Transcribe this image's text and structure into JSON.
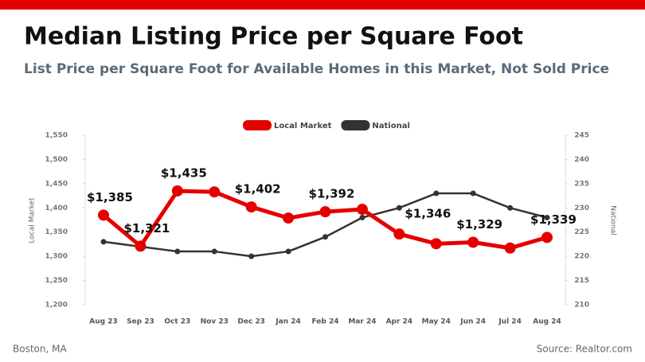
{
  "chart_data": {
    "type": "line",
    "title": "Median Listing Price per Square Foot",
    "subtitle": "List Price per Square Foot for Available Homes in this Market, Not Sold Price",
    "categories": [
      "Aug 23",
      "Sep 23",
      "Oct 23",
      "Nov 23",
      "Dec 23",
      "Jan 24",
      "Feb 24",
      "Mar 24",
      "Apr 24",
      "May 24",
      "Jun 24",
      "Jul 24",
      "Aug 24"
    ],
    "series": [
      {
        "name": "Local Market",
        "color": "#e50000",
        "values": [
          1385,
          1321,
          1435,
          1433,
          1402,
          1379,
          1392,
          1397,
          1346,
          1326,
          1329,
          1317,
          1339
        ],
        "value_labels": [
          "$1,385",
          "$1,321",
          "$1,435",
          null,
          "$1,402",
          null,
          "$1,392",
          null,
          "$1,346",
          null,
          "$1,329",
          null,
          "$1,339"
        ]
      },
      {
        "name": "National",
        "color": "#333333",
        "axis": "y2",
        "values": [
          223,
          222,
          221,
          221,
          220,
          221,
          224,
          228,
          230,
          233,
          233,
          230,
          228
        ]
      }
    ],
    "ylabel": "Local Market",
    "y2label": "National",
    "ylim": [
      1200,
      1550
    ],
    "yticks": [
      {
        "value": 1200,
        "label": "1,200"
      },
      {
        "value": 1250,
        "label": "1,250"
      },
      {
        "value": 1300,
        "label": "1,300"
      },
      {
        "value": 1350,
        "label": "1,350"
      },
      {
        "value": 1400,
        "label": "1,400"
      },
      {
        "value": 1450,
        "label": "1,450"
      },
      {
        "value": 1500,
        "label": "1,500"
      },
      {
        "value": 1550,
        "label": "1,550"
      }
    ],
    "y2lim": [
      210,
      245
    ],
    "y2ticks": [
      210,
      215,
      220,
      225,
      230,
      235,
      240,
      245
    ],
    "legend": "top",
    "footer_left": "Boston, MA",
    "footer_right": "Source: Realtor.com"
  }
}
